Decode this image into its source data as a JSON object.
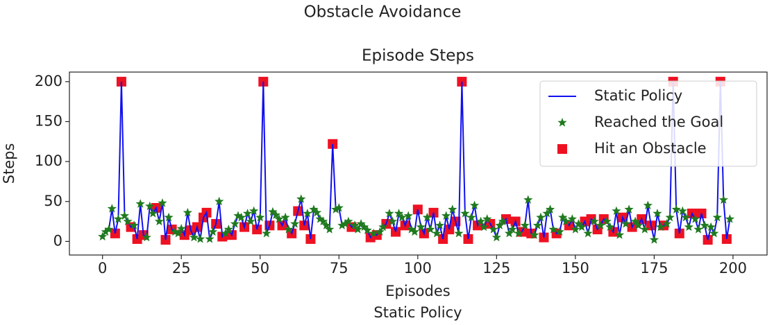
{
  "chart_data": {
    "type": "line-scatter",
    "suptitle": "Obstacle Avoidance",
    "title": "Episode Steps",
    "xlabel": "Episodes",
    "ylabel": "Steps",
    "footer": "Static Policy",
    "xlim": [
      -10.5,
      210.8
    ],
    "ylim": [
      -17,
      212
    ],
    "xticks": [
      0,
      25,
      50,
      75,
      100,
      125,
      150,
      175,
      200
    ],
    "yticks": [
      0,
      50,
      100,
      150,
      200
    ],
    "legend": "upper right",
    "series": [
      {
        "name": "Static Policy",
        "kind": "line",
        "color": "#1010ee",
        "x": [
          0,
          1,
          2,
          3,
          4,
          5,
          6,
          7,
          8,
          9,
          10,
          11,
          12,
          13,
          14,
          15,
          16,
          17,
          18,
          19,
          20,
          21,
          22,
          23,
          24,
          25,
          26,
          27,
          28,
          29,
          30,
          31,
          32,
          33,
          34,
          35,
          36,
          37,
          38,
          39,
          40,
          41,
          42,
          43,
          44,
          45,
          46,
          47,
          48,
          49,
          50,
          51,
          52,
          53,
          54,
          55,
          56,
          57,
          58,
          59,
          60,
          61,
          62,
          63,
          64,
          65,
          66,
          67,
          68,
          69,
          70,
          71,
          72,
          73,
          74,
          75,
          76,
          77,
          78,
          79,
          80,
          81,
          82,
          83,
          84,
          85,
          86,
          87,
          88,
          89,
          90,
          91,
          92,
          93,
          94,
          95,
          96,
          97,
          98,
          99,
          100,
          101,
          102,
          103,
          104,
          105,
          106,
          107,
          108,
          109,
          110,
          111,
          112,
          113,
          114,
          115,
          116,
          117,
          118,
          119,
          120,
          121,
          122,
          123,
          124,
          125,
          126,
          127,
          128,
          129,
          130,
          131,
          132,
          133,
          134,
          135,
          136,
          137,
          138,
          139,
          140,
          141,
          142,
          143,
          144,
          145,
          146,
          147,
          148,
          149,
          150,
          151,
          152,
          153,
          154,
          155,
          156,
          157,
          158,
          159,
          160,
          161,
          162,
          163,
          164,
          165,
          166,
          167,
          168,
          169,
          170,
          171,
          172,
          173,
          174,
          175,
          176,
          177,
          178,
          179,
          180,
          181,
          182,
          183,
          184,
          185,
          186,
          187,
          188,
          189,
          190,
          191,
          192,
          193,
          194,
          195,
          196,
          197,
          198,
          199
        ],
        "values": [
          6,
          12,
          15,
          41,
          10,
          28,
          200,
          32,
          25,
          18,
          20,
          3,
          47,
          8,
          5,
          44,
          35,
          42,
          25,
          48,
          2,
          30,
          15,
          12,
          10,
          16,
          8,
          36,
          14,
          5,
          18,
          3,
          30,
          36,
          3,
          12,
          22,
          50,
          6,
          10,
          15,
          8,
          22,
          32,
          30,
          18,
          35,
          25,
          38,
          15,
          30,
          200,
          10,
          20,
          37,
          33,
          28,
          20,
          30,
          15,
          10,
          22,
          38,
          53,
          20,
          35,
          3,
          40,
          36,
          28,
          25,
          20,
          15,
          122,
          40,
          42,
          20,
          22,
          25,
          18,
          20,
          15,
          22,
          18,
          14,
          5,
          10,
          8,
          12,
          18,
          22,
          35,
          25,
          12,
          35,
          30,
          20,
          32,
          15,
          12,
          40,
          18,
          10,
          30,
          15,
          36,
          10,
          20,
          3,
          32,
          15,
          40,
          25,
          10,
          200,
          35,
          3,
          30,
          45,
          20,
          25,
          18,
          28,
          22,
          15,
          5,
          20,
          25,
          28,
          10,
          15,
          25,
          10,
          12,
          20,
          52,
          10,
          8,
          20,
          30,
          5,
          35,
          40,
          15,
          10,
          12,
          30,
          25,
          20,
          28,
          15,
          22,
          18,
          25,
          10,
          28,
          25,
          15,
          20,
          28,
          25,
          18,
          12,
          38,
          8,
          30,
          22,
          40,
          18,
          25,
          20,
          28,
          15,
          45,
          20,
          2,
          35,
          18,
          20,
          22,
          30,
          200,
          40,
          10,
          38,
          30,
          18,
          35,
          28,
          15,
          35,
          20,
          2,
          18,
          10,
          30,
          200,
          52,
          3,
          28
        ]
      },
      {
        "name": "Reached the Goal",
        "kind": "star",
        "color": "#1f7a1f",
        "x": [
          0,
          1,
          2,
          3,
          5,
          7,
          8,
          10,
          12,
          14,
          15,
          16,
          18,
          19,
          21,
          23,
          24,
          25,
          27,
          29,
          31,
          34,
          35,
          37,
          39,
          40,
          42,
          43,
          44,
          46,
          47,
          48,
          50,
          52,
          54,
          55,
          56,
          58,
          59,
          61,
          63,
          65,
          67,
          68,
          69,
          70,
          71,
          72,
          74,
          75,
          76,
          77,
          78,
          80,
          81,
          82,
          83,
          84,
          86,
          88,
          89,
          91,
          92,
          94,
          95,
          97,
          98,
          99,
          101,
          103,
          104,
          106,
          107,
          109,
          111,
          113,
          115,
          117,
          118,
          120,
          121,
          122,
          124,
          125,
          126,
          127,
          129,
          130,
          132,
          134,
          135,
          137,
          138,
          139,
          141,
          142,
          143,
          145,
          146,
          147,
          149,
          150,
          151,
          152,
          154,
          156,
          158,
          160,
          161,
          163,
          164,
          166,
          167,
          169,
          170,
          172,
          173,
          175,
          176,
          177,
          179,
          180,
          182,
          184,
          185,
          186,
          188,
          189,
          191,
          193,
          194,
          195,
          197,
          199
        ],
        "values": [
          6,
          12,
          15,
          41,
          28,
          32,
          25,
          20,
          47,
          5,
          44,
          35,
          25,
          48,
          30,
          12,
          10,
          16,
          36,
          5,
          3,
          3,
          12,
          50,
          10,
          15,
          22,
          32,
          30,
          35,
          25,
          38,
          30,
          10,
          37,
          33,
          28,
          30,
          15,
          22,
          53,
          35,
          40,
          36,
          28,
          25,
          20,
          15,
          40,
          42,
          20,
          22,
          25,
          20,
          15,
          22,
          18,
          14,
          10,
          12,
          18,
          35,
          25,
          35,
          30,
          32,
          15,
          12,
          18,
          30,
          15,
          10,
          20,
          32,
          40,
          10,
          35,
          30,
          45,
          25,
          18,
          28,
          15,
          5,
          20,
          25,
          10,
          15,
          10,
          20,
          52,
          8,
          20,
          30,
          35,
          40,
          15,
          12,
          30,
          25,
          28,
          15,
          22,
          18,
          10,
          25,
          20,
          25,
          18,
          38,
          8,
          22,
          40,
          25,
          20,
          15,
          45,
          2,
          35,
          18,
          22,
          30,
          40,
          38,
          30,
          18,
          28,
          15,
          20,
          18,
          10,
          30,
          52,
          28
        ]
      },
      {
        "name": "Hit an Obstacle",
        "kind": "square",
        "color": "#ee1122",
        "x": [
          4,
          6,
          9,
          11,
          13,
          17,
          20,
          22,
          26,
          28,
          30,
          32,
          33,
          36,
          38,
          41,
          45,
          49,
          51,
          53,
          57,
          60,
          62,
          64,
          66,
          73,
          79,
          85,
          87,
          90,
          93,
          96,
          100,
          102,
          105,
          108,
          110,
          112,
          114,
          116,
          119,
          123,
          128,
          131,
          133,
          136,
          140,
          144,
          148,
          153,
          155,
          157,
          159,
          162,
          165,
          168,
          171,
          174,
          178,
          181,
          183,
          187,
          190,
          192,
          196,
          198
        ],
        "values": [
          10,
          200,
          18,
          3,
          8,
          42,
          2,
          15,
          8,
          14,
          18,
          30,
          36,
          22,
          6,
          8,
          18,
          15,
          200,
          20,
          20,
          10,
          38,
          20,
          3,
          122,
          18,
          5,
          8,
          22,
          12,
          20,
          40,
          10,
          36,
          3,
          15,
          25,
          200,
          3,
          20,
          22,
          28,
          25,
          12,
          10,
          5,
          10,
          20,
          25,
          28,
          15,
          28,
          12,
          30,
          18,
          28,
          20,
          20,
          200,
          10,
          35,
          35,
          2,
          200,
          3
        ]
      }
    ]
  }
}
